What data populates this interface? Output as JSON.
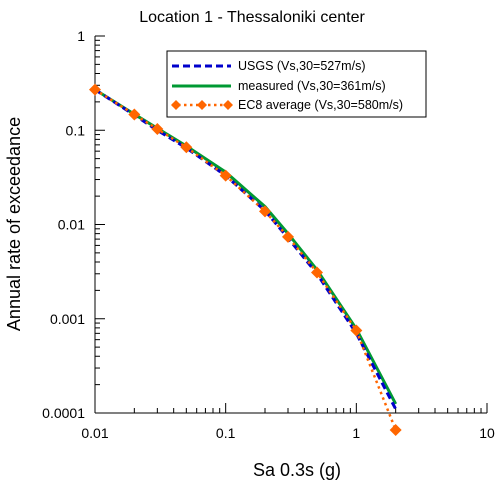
{
  "chart_data": {
    "type": "line",
    "title": "Location 1 - Thessaloniki center",
    "xlabel": "Sa 0.3s (g)",
    "ylabel": "Annual rate of exceedance",
    "xscale": "log",
    "yscale": "log",
    "xlim": [
      0.01,
      10
    ],
    "ylim": [
      0.0001,
      1
    ],
    "x_tick_labels": [
      "0.01",
      "0.1",
      "1",
      "10"
    ],
    "y_tick_labels": [
      "0.0001",
      "0.001",
      "0.01",
      "0.1",
      "1"
    ],
    "legend_position": "top-right",
    "series": [
      {
        "name": "USGS (Vs,30=527m/s)",
        "color": "#0000cc",
        "style": "dashed",
        "x": [
          0.01,
          0.02,
          0.03,
          0.05,
          0.1,
          0.2,
          0.3,
          0.5,
          1.0,
          2.0
        ],
        "y": [
          0.27,
          0.145,
          0.1,
          0.065,
          0.033,
          0.014,
          0.0072,
          0.003,
          0.0007,
          0.00011
        ]
      },
      {
        "name": "measured (Vs,30=361m/s)",
        "color": "#009933",
        "style": "solid",
        "x": [
          0.01,
          0.02,
          0.03,
          0.05,
          0.1,
          0.2,
          0.3,
          0.5,
          1.0,
          2.0
        ],
        "y": [
          0.27,
          0.148,
          0.105,
          0.068,
          0.036,
          0.0155,
          0.008,
          0.0033,
          0.00078,
          0.000125
        ]
      },
      {
        "name": "EC8 average (Vs,30=580m/s)",
        "color": "#ff6600",
        "style": "dotted-diamond",
        "x": [
          0.01,
          0.02,
          0.03,
          0.05,
          0.1,
          0.2,
          0.3,
          0.5,
          1.0,
          2.0
        ],
        "y": [
          0.27,
          0.147,
          0.103,
          0.066,
          0.033,
          0.0138,
          0.0074,
          0.0031,
          0.00075,
          6.6e-05
        ]
      }
    ]
  }
}
